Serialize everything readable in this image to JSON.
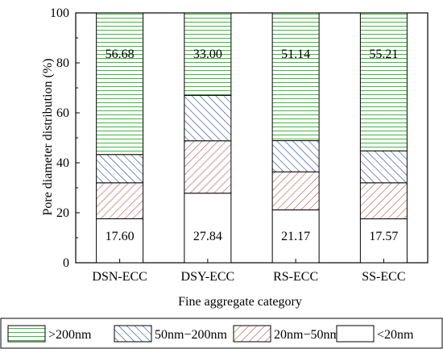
{
  "chart_data": {
    "type": "bar",
    "stacked": true,
    "title": "",
    "xlabel": "Fine aggregate category",
    "ylabel": "Pore diameter distribution (%)",
    "ylim": [
      0,
      100
    ],
    "yticks": [
      "0",
      "20",
      "40",
      "60",
      "80",
      "100"
    ],
    "categories": [
      "DSN-ECC",
      "DSY-ECC",
      "RS-ECC",
      "SS-ECC"
    ],
    "series": [
      {
        "name": "<20nm",
        "values": [
          17.6,
          27.84,
          21.17,
          17.57
        ],
        "color": "#ffffff",
        "hatch": "none"
      },
      {
        "name": "20nm−50nm",
        "values": [
          14.4,
          20.96,
          15.23,
          14.43
        ],
        "color": "#c0504d",
        "hatch": "diagonal"
      },
      {
        "name": "50nm−200nm",
        "values": [
          11.32,
          18.2,
          12.46,
          12.79
        ],
        "color": "#1f3fa0",
        "hatch": "backdiagonal"
      },
      {
        "name": ">200nm",
        "values": [
          56.68,
          33.0,
          51.14,
          55.21
        ],
        "color": "#3fb83f",
        "hatch": "horizontal"
      }
    ],
    "data_labels": {
      "bottom": [
        "17.60",
        "27.84",
        "21.17",
        "17.57"
      ],
      "top": [
        "56.68",
        "33.00",
        "51.14",
        "55.21"
      ]
    },
    "legend": {
      "position": "bottom",
      "order": [
        ">200nm",
        "50nm−200nm",
        "20nm−50nm",
        "<20nm"
      ]
    },
    "grid": false
  }
}
